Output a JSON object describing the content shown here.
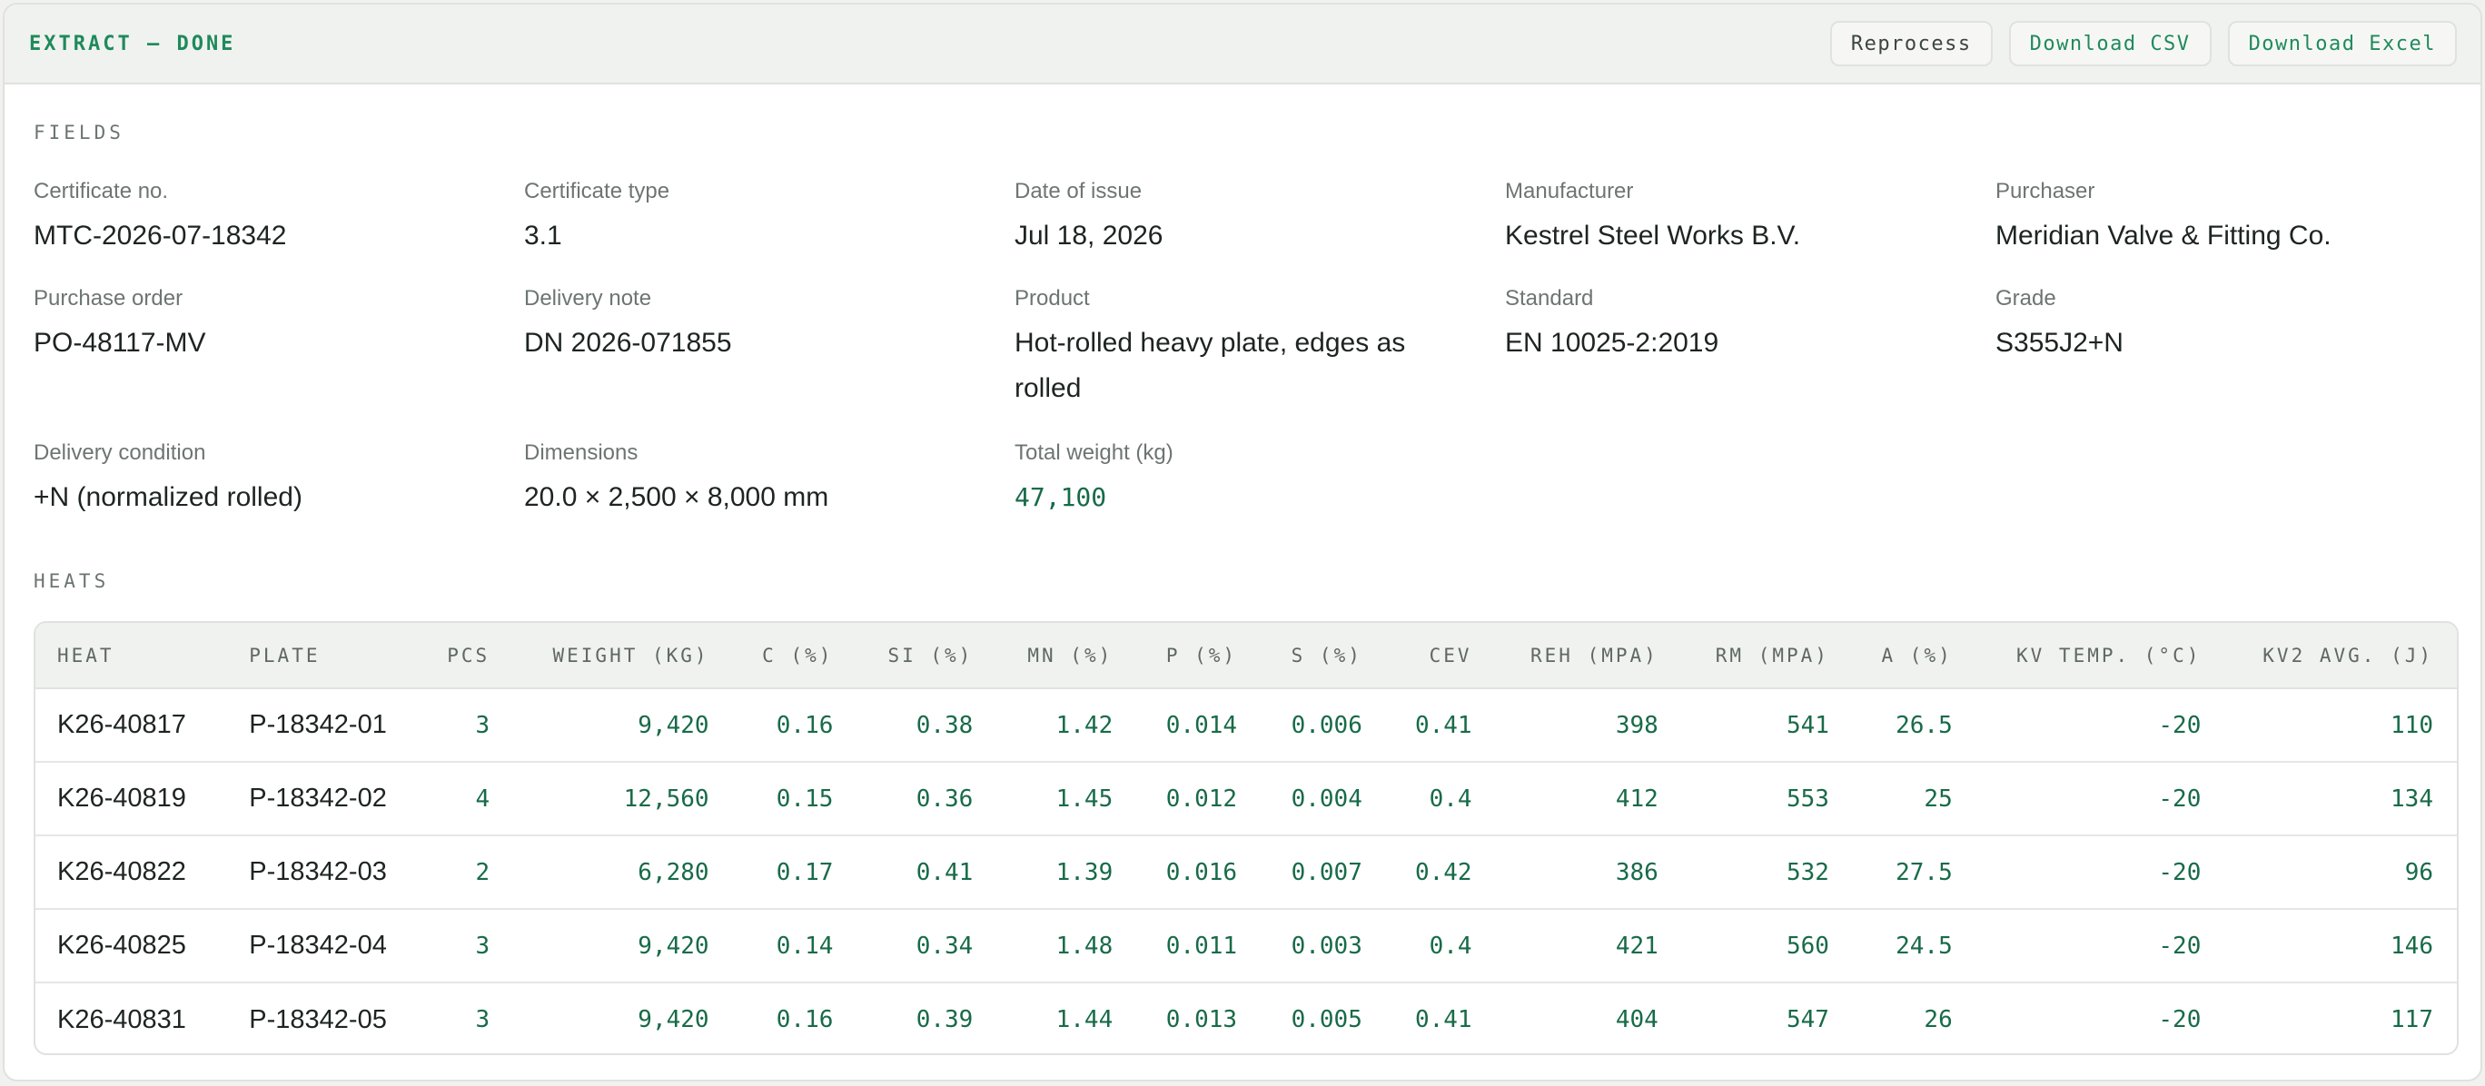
{
  "header": {
    "status": "EXTRACT — DONE",
    "actions": {
      "reprocess": "Reprocess",
      "download_csv": "Download CSV",
      "download_excel": "Download Excel"
    }
  },
  "fields_section": {
    "title": "FIELDS",
    "items": [
      {
        "label": "Certificate no.",
        "value": "MTC-2026-07-18342"
      },
      {
        "label": "Certificate type",
        "value": "3.1"
      },
      {
        "label": "Date of issue",
        "value": "Jul 18, 2026"
      },
      {
        "label": "Manufacturer",
        "value": "Kestrel Steel Works B.V."
      },
      {
        "label": "Purchaser",
        "value": "Meridian Valve & Fitting Co."
      },
      {
        "label": "Purchase order",
        "value": "PO-48117-MV"
      },
      {
        "label": "Delivery note",
        "value": "DN 2026-071855"
      },
      {
        "label": "Product",
        "value": "Hot-rolled heavy plate, edges as rolled"
      },
      {
        "label": "Standard",
        "value": "EN 10025-2:2019"
      },
      {
        "label": "Grade",
        "value": "S355J2+N"
      },
      {
        "label": "Delivery condition",
        "value": "+N (normalized rolled)"
      },
      {
        "label": "Dimensions",
        "value": "20.0 × 2,500 × 8,000 mm"
      },
      {
        "label": "Total weight (kg)",
        "value": "47,100"
      }
    ]
  },
  "heats_section": {
    "title": "HEATS",
    "columns": [
      "HEAT",
      "PLATE",
      "PCS",
      "WEIGHT (KG)",
      "C (%)",
      "SI (%)",
      "MN (%)",
      "P (%)",
      "S (%)",
      "CEV",
      "REH (MPA)",
      "RM (MPA)",
      "A (%)",
      "KV TEMP. (°C)",
      "KV2 AVG. (J)"
    ],
    "rows": [
      [
        "K26-40817",
        "P-18342-01",
        "3",
        "9,420",
        "0.16",
        "0.38",
        "1.42",
        "0.014",
        "0.006",
        "0.41",
        "398",
        "541",
        "26.5",
        "-20",
        "110"
      ],
      [
        "K26-40819",
        "P-18342-02",
        "4",
        "12,560",
        "0.15",
        "0.36",
        "1.45",
        "0.012",
        "0.004",
        "0.4",
        "412",
        "553",
        "25",
        "-20",
        "134"
      ],
      [
        "K26-40822",
        "P-18342-03",
        "2",
        "6,280",
        "0.17",
        "0.41",
        "1.39",
        "0.016",
        "0.007",
        "0.42",
        "386",
        "532",
        "27.5",
        "-20",
        "96"
      ],
      [
        "K26-40825",
        "P-18342-04",
        "3",
        "9,420",
        "0.14",
        "0.34",
        "1.48",
        "0.011",
        "0.003",
        "0.4",
        "421",
        "560",
        "24.5",
        "-20",
        "146"
      ],
      [
        "K26-40831",
        "P-18342-05",
        "3",
        "9,420",
        "0.16",
        "0.39",
        "1.44",
        "0.013",
        "0.005",
        "0.41",
        "404",
        "547",
        "26",
        "-20",
        "117"
      ]
    ]
  },
  "colors": {
    "accent": "#1f8a5c",
    "numeric": "#186b48",
    "header_bg": "#f0f2ef",
    "border": "#dfe2de"
  }
}
